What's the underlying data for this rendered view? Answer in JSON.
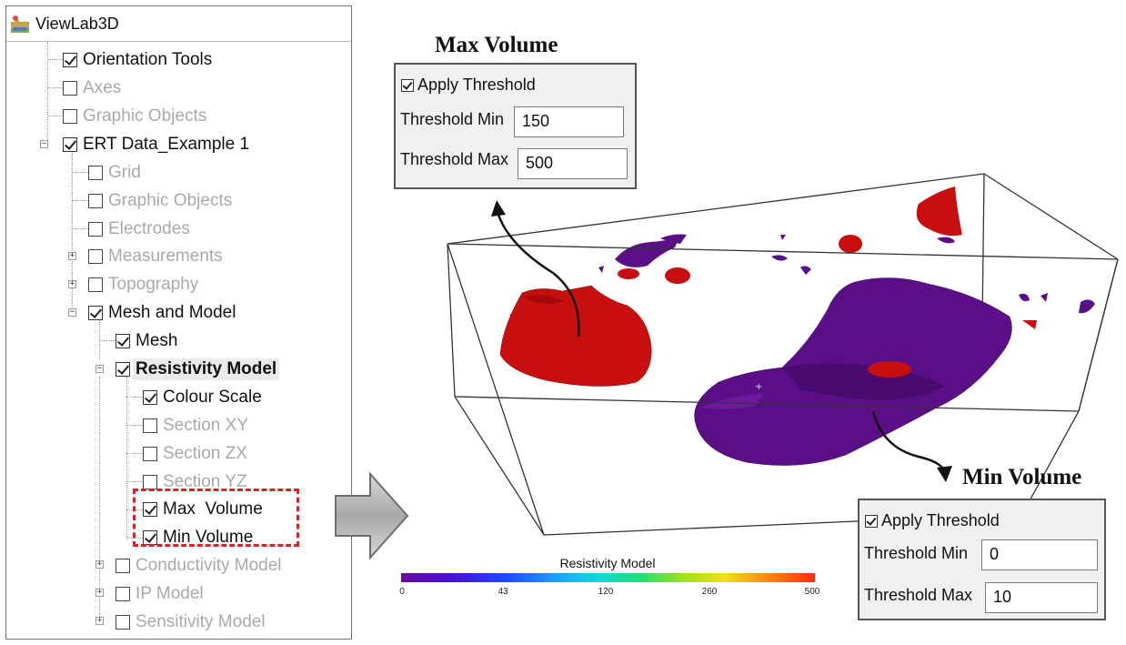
{
  "app": {
    "title": "ViewLab3D"
  },
  "tree": {
    "items": [
      {
        "label": "Orientation Tools",
        "checked": true,
        "enabled": true
      },
      {
        "label": "Axes",
        "checked": false,
        "enabled": false
      },
      {
        "label": "Graphic Objects",
        "checked": false,
        "enabled": false
      },
      {
        "label": "ERT Data_Example 1",
        "checked": true,
        "enabled": true
      },
      {
        "label": "Grid",
        "checked": false,
        "enabled": false
      },
      {
        "label": "Graphic Objects",
        "checked": false,
        "enabled": false
      },
      {
        "label": "Electrodes",
        "checked": false,
        "enabled": false
      },
      {
        "label": "Measurements",
        "checked": false,
        "enabled": false
      },
      {
        "label": "Topography",
        "checked": false,
        "enabled": false
      },
      {
        "label": "Mesh and Model",
        "checked": true,
        "enabled": true
      },
      {
        "label": "Mesh",
        "checked": true,
        "enabled": true
      },
      {
        "label": "Resistivity Model",
        "checked": true,
        "enabled": true,
        "selected": true
      },
      {
        "label": "Colour Scale",
        "checked": true,
        "enabled": true
      },
      {
        "label": "Section XY",
        "checked": false,
        "enabled": false
      },
      {
        "label": "Section ZX",
        "checked": false,
        "enabled": false
      },
      {
        "label": "Section YZ",
        "checked": false,
        "enabled": false
      },
      {
        "label": "Max  Volume",
        "checked": true,
        "enabled": true
      },
      {
        "label": "Min Volume",
        "checked": true,
        "enabled": true
      },
      {
        "label": "Conductivity Model",
        "checked": false,
        "enabled": false
      },
      {
        "label": "IP Model",
        "checked": false,
        "enabled": false
      },
      {
        "label": "Sensitivity Model",
        "checked": false,
        "enabled": false
      }
    ]
  },
  "max_panel": {
    "heading": "Max Volume",
    "apply_label": "Apply Threshold",
    "min_label": "Threshold Min",
    "min_value": "150",
    "max_label": "Threshold Max",
    "max_value": "500"
  },
  "min_panel": {
    "heading": "Min Volume",
    "apply_label": "Apply Threshold",
    "min_label": "Threshold Min",
    "min_value": "0",
    "max_label": "Threshold Max",
    "max_value": "10"
  },
  "colorbar": {
    "title": "Resistivity Model",
    "ticks": [
      "0",
      "43",
      "120",
      "260",
      "500"
    ]
  },
  "colors": {
    "max_volume": "#c80f0f",
    "min_volume": "#5b0f86",
    "highlight": "#e02020"
  }
}
